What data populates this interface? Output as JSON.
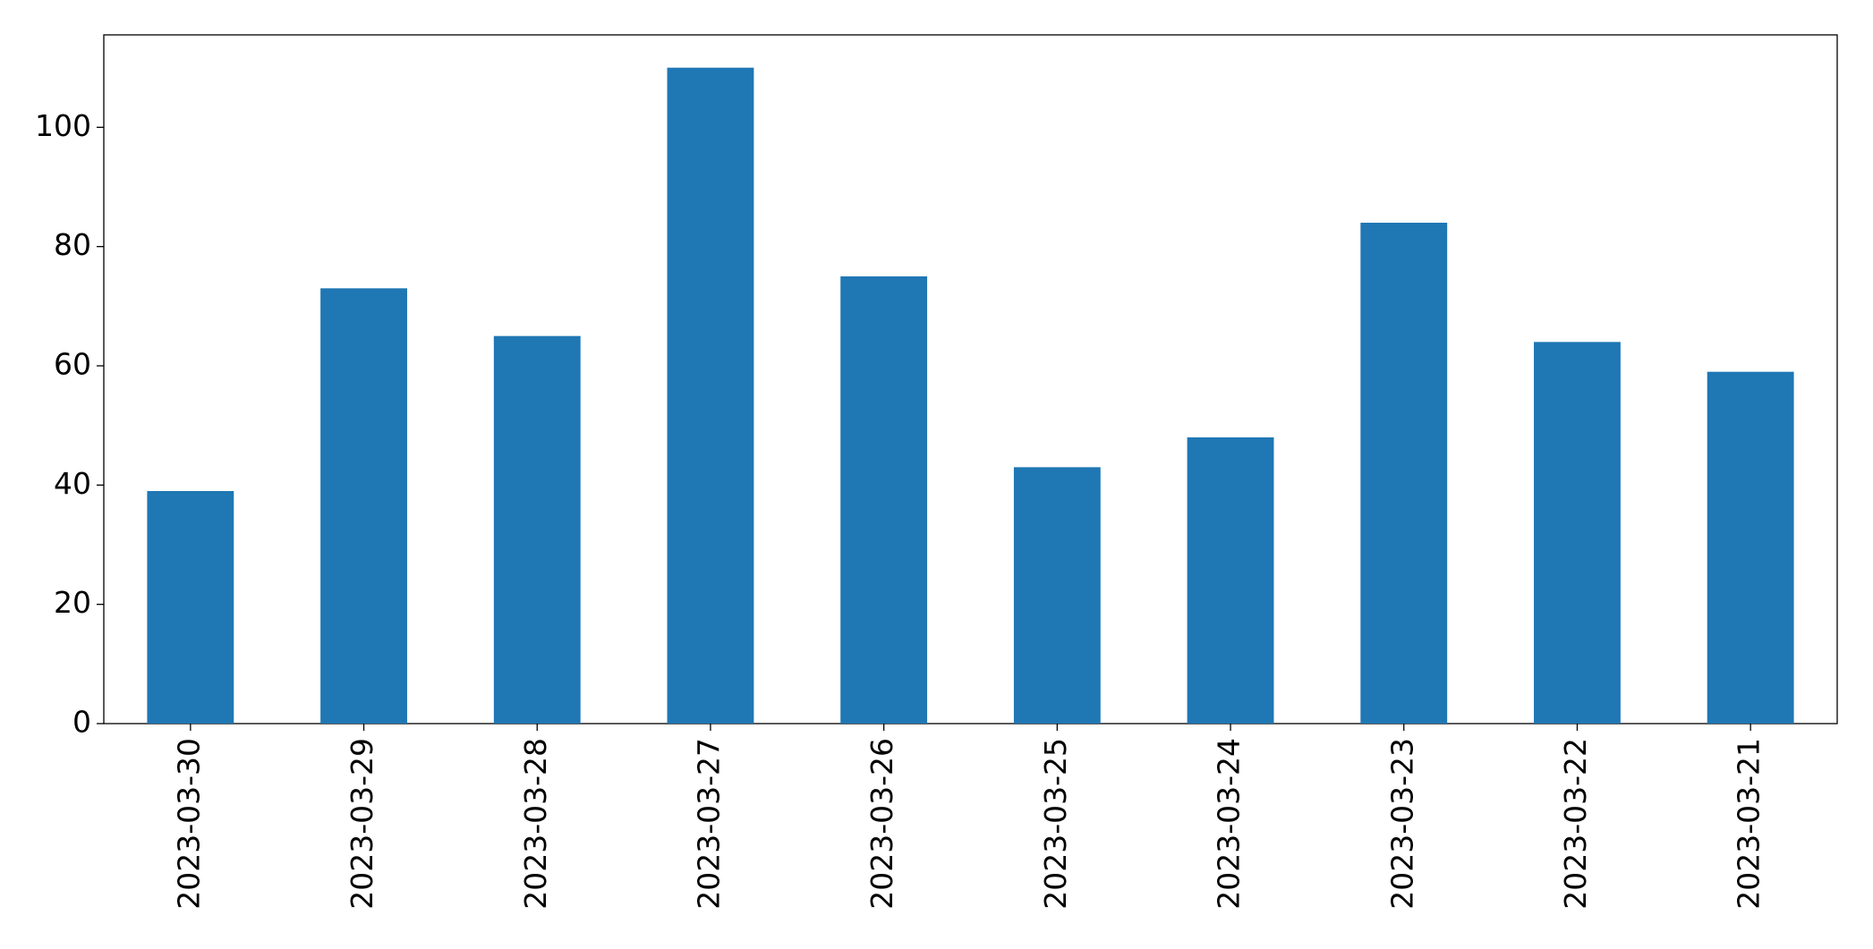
{
  "chart_data": {
    "type": "bar",
    "categories": [
      "2023-03-30",
      "2023-03-29",
      "2023-03-28",
      "2023-03-27",
      "2023-03-26",
      "2023-03-25",
      "2023-03-24",
      "2023-03-23",
      "2023-03-22",
      "2023-03-21"
    ],
    "values": [
      39,
      73,
      65,
      110,
      75,
      43,
      48,
      84,
      64,
      59
    ],
    "color": "#1f77b4",
    "ylim": [
      0,
      115.5
    ],
    "yticks": [
      0,
      20,
      40,
      60,
      80,
      100
    ],
    "grid": false
  }
}
